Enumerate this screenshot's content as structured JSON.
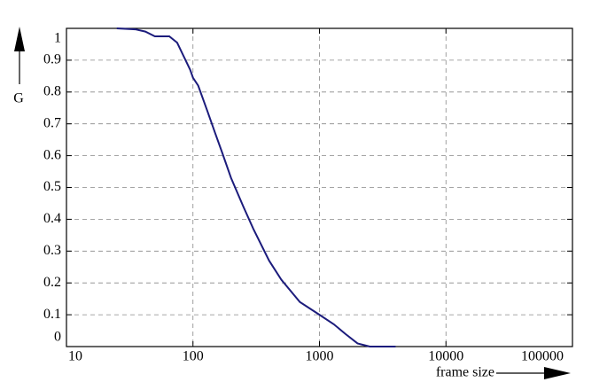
{
  "chart_data": {
    "type": "line",
    "xlabel": "frame size",
    "ylabel": "G",
    "x": [
      25,
      35,
      42,
      50,
      58,
      65,
      75,
      85,
      95,
      100,
      110,
      130,
      150,
      170,
      200,
      250,
      300,
      400,
      500,
      700,
      1000,
      1300,
      1600,
      2000,
      2500,
      4000
    ],
    "series": [
      {
        "name": "G",
        "color": "#1c1c7c",
        "values": [
          1.0,
          0.997,
          0.99,
          0.975,
          0.975,
          0.975,
          0.955,
          0.91,
          0.87,
          0.845,
          0.82,
          0.74,
          0.67,
          0.61,
          0.53,
          0.44,
          0.37,
          0.27,
          0.21,
          0.14,
          0.1,
          0.07,
          0.04,
          0.01,
          0.0,
          0.0
        ]
      }
    ],
    "xscale": "log",
    "xlim": [
      10,
      100000
    ],
    "xticks": [
      10,
      100,
      1000,
      10000,
      100000
    ],
    "ylim": [
      0,
      1
    ],
    "yticks": [
      0,
      0.1,
      0.2,
      0.3,
      0.4,
      0.5,
      0.6,
      0.7,
      0.8,
      0.9,
      1
    ],
    "grid": true
  }
}
